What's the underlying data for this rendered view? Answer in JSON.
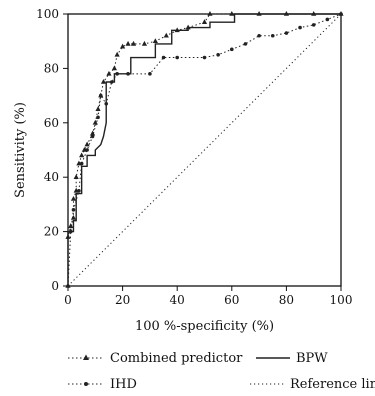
{
  "chart_data": {
    "type": "line",
    "xlabel": "100 %-specificity (%)",
    "ylabel": "Sensitivity (%)",
    "xlim": [
      0,
      100
    ],
    "ylim": [
      0,
      100
    ],
    "x_ticks": [
      "0",
      "20",
      "40",
      "60",
      "80",
      "100"
    ],
    "y_ticks": [
      "0",
      "20",
      "40",
      "60",
      "80",
      "100"
    ],
    "grid": false,
    "legend_position": "bottom",
    "series": [
      {
        "name": "Combined predictor",
        "style": "dotted-triangle",
        "color": "#222222",
        "x": [
          0,
          0,
          1,
          2,
          2,
          3,
          3,
          4,
          5,
          6,
          7,
          9,
          10,
          11,
          12,
          13,
          15,
          17,
          18,
          20,
          22,
          24,
          28,
          32,
          36,
          40,
          44,
          50,
          52,
          60,
          70,
          80,
          90,
          100
        ],
        "y": [
          0,
          18,
          22,
          25,
          32,
          35,
          40,
          45,
          48,
          50,
          52,
          56,
          60,
          65,
          70,
          75,
          78,
          80,
          85,
          88,
          89,
          89,
          89,
          90,
          92,
          94,
          95,
          97,
          100,
          100,
          100,
          100,
          100,
          100
        ]
      },
      {
        "name": "BPW",
        "style": "solid",
        "color": "#222222",
        "x": [
          0,
          0,
          2,
          2,
          3,
          3,
          5,
          5,
          7,
          7,
          10,
          10,
          12,
          13,
          14,
          14,
          17,
          17,
          23,
          23,
          32,
          32,
          38,
          38,
          44,
          44,
          52,
          52,
          61,
          61,
          75,
          100
        ],
        "y": [
          0,
          20,
          20,
          24,
          24,
          34,
          34,
          44,
          44,
          48,
          48,
          50,
          52,
          55,
          60,
          75,
          75,
          78,
          78,
          84,
          84,
          89,
          89,
          94,
          94,
          95,
          95,
          97,
          97,
          100,
          100,
          100
        ]
      },
      {
        "name": "IHD",
        "style": "dotted-dot",
        "color": "#222222",
        "x": [
          0,
          1,
          2,
          4,
          5,
          7,
          9,
          11,
          12,
          14,
          16,
          18,
          22,
          30,
          35,
          40,
          50,
          55,
          60,
          65,
          70,
          75,
          80,
          85,
          90,
          95,
          100
        ],
        "y": [
          0,
          20,
          28,
          35,
          45,
          50,
          55,
          62,
          70,
          67,
          75,
          78,
          78,
          78,
          84,
          84,
          84,
          85,
          87,
          89,
          92,
          92,
          93,
          95,
          96,
          98,
          100
        ]
      },
      {
        "name": "Reference line",
        "style": "dotted",
        "color": "#222222",
        "x": [
          0,
          100
        ],
        "y": [
          0,
          100
        ]
      }
    ]
  }
}
